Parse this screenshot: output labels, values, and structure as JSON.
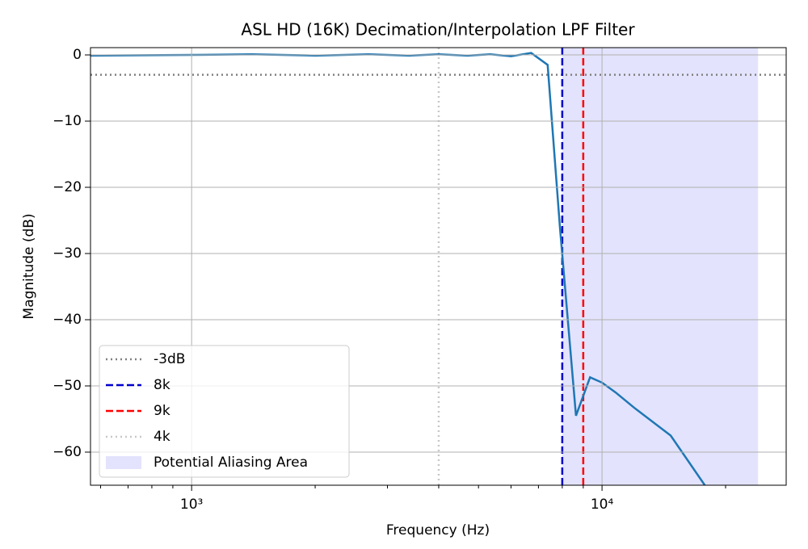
{
  "chart_data": {
    "type": "line",
    "title": "ASL HD (16K) Decimation/Interpolation LPF Filter",
    "xlabel": "Frequency (Hz)",
    "ylabel": "Magnitude (dB)",
    "xscale": "log",
    "x": [
      567,
      1000,
      1400,
      2000,
      2700,
      3400,
      4000,
      4700,
      5340,
      6000,
      6720,
      7370,
      7900,
      8640,
      9350,
      10000,
      10800,
      11980,
      14700,
      17800
    ],
    "values": [
      -0.1,
      0,
      0.1,
      -0.1,
      0.1,
      -0.1,
      0.1,
      -0.1,
      0.1,
      -0.2,
      0.3,
      -1.5,
      -26.2,
      -54.5,
      -48.7,
      -49.5,
      -51,
      -53.3,
      -57.5,
      -65
    ],
    "color": "#1f77b4",
    "xlim": [
      567,
      28100
    ],
    "ylim": [
      -65,
      1.1
    ],
    "xticks": [
      {
        "value": 1000,
        "label": "10³"
      },
      {
        "value": 10000,
        "label": "10⁴"
      }
    ],
    "xminorticks": [
      600,
      700,
      800,
      900,
      2000,
      3000,
      4000,
      5000,
      6000,
      7000,
      8000,
      9000,
      20000
    ],
    "yticks": [
      0,
      {
        "value": -10,
        "label": "−10"
      },
      {
        "value": -20,
        "label": "−20"
      },
      {
        "value": -30,
        "label": "−30"
      },
      {
        "value": -40,
        "label": "−40"
      },
      {
        "value": -50,
        "label": "−50"
      },
      {
        "value": -60,
        "label": "−60"
      }
    ],
    "grid": true,
    "hlines": [
      {
        "name": "-3dB",
        "value": -3,
        "color": "#808080",
        "style": "dotted"
      }
    ],
    "vlines": [
      {
        "name": "8k",
        "value": 8000,
        "color": "#0000cc",
        "style": "dashed"
      },
      {
        "name": "9k",
        "value": 9000,
        "color": "#ff0000",
        "style": "dashed"
      },
      {
        "name": "4k",
        "value": 4000,
        "color": "#c8c8c8",
        "style": "dotted"
      }
    ],
    "spans": [
      {
        "name": "Potential Aliasing Area",
        "range": [
          8000,
          24000
        ],
        "color": "#e3e3fd"
      }
    ],
    "legend": "lower left"
  }
}
